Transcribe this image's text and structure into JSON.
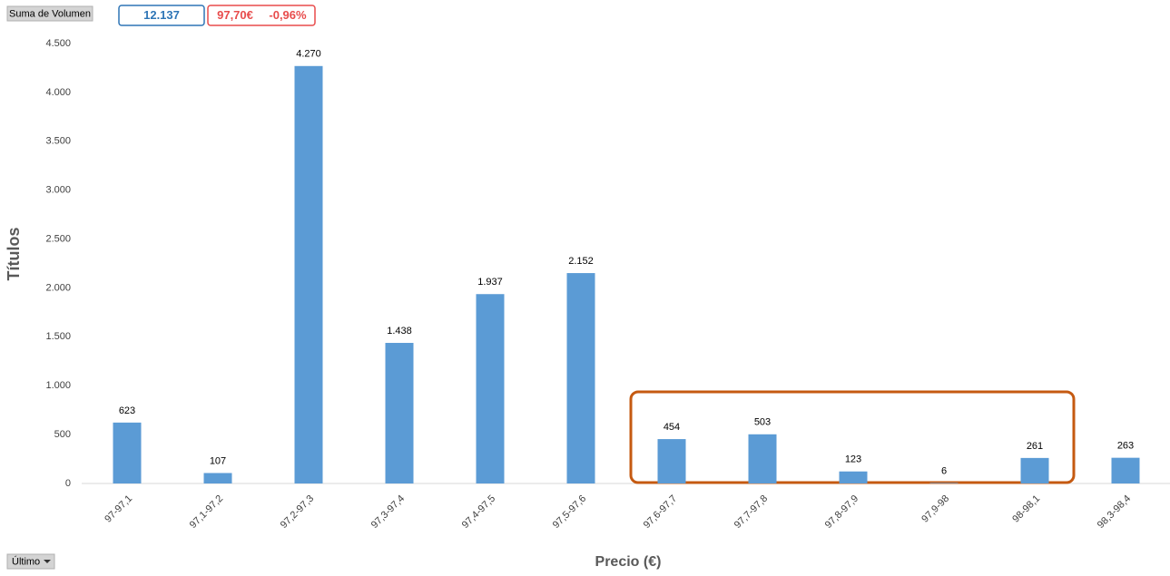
{
  "header": {
    "field_button": "Suma de Volumen",
    "total": "12.137",
    "price": "97,70€",
    "change": "-0,96%"
  },
  "footer": {
    "filter_button": "Último"
  },
  "chart_data": {
    "type": "bar",
    "y_label": "Títulos",
    "x_label": "Precio (€)",
    "categories": [
      "97-97,1",
      "97,1-97,2",
      "97,2-97,3",
      "97,3-97,4",
      "97,4-97,5",
      "97,5-97,6",
      "97,6-97,7",
      "97,7-97,8",
      "97,8-97,9",
      "97,9-98",
      "98-98,1",
      "98,3-98,4"
    ],
    "values": [
      623,
      107,
      4270,
      1438,
      1937,
      2152,
      454,
      503,
      123,
      6,
      261,
      263
    ],
    "value_labels": [
      "623",
      "107",
      "4.270",
      "1.438",
      "1.937",
      "2.152",
      "454",
      "503",
      "123",
      "6",
      "261",
      "263"
    ],
    "color": "#5b9bd5",
    "ylim": [
      0,
      4500
    ],
    "yticks": [
      0,
      500,
      {
        "value": 1000,
        "label": "1.000"
      },
      {
        "value": 1500,
        "label": "1.500"
      },
      {
        "value": 2000,
        "label": "2.000"
      },
      {
        "value": 2500,
        "label": "2.500"
      },
      {
        "value": 3000,
        "label": "3.000"
      },
      {
        "value": 3500,
        "label": "3.500"
      },
      {
        "value": 4000,
        "label": "4.000"
      },
      {
        "value": 4500,
        "label": "4.500"
      }
    ],
    "grid": false
  }
}
